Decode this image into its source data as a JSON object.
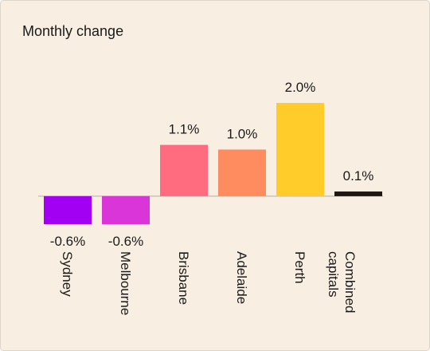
{
  "chart_data": {
    "type": "bar",
    "title": "Monthly change",
    "categories": [
      "Sydney",
      "Melbourne",
      "Brisbane",
      "Adelaide",
      "Perth",
      "Combined capitals"
    ],
    "values": [
      -0.6,
      -0.6,
      1.1,
      1.0,
      2.0,
      0.1
    ],
    "value_labels": [
      "-0.6%",
      "-0.6%",
      "1.1%",
      "1.0%",
      "2.0%",
      "0.1%"
    ],
    "colors": [
      "#a100f2",
      "#d935d9",
      "#ff6b7f",
      "#ff8c5e",
      "#ffcc29",
      "#1e1612"
    ],
    "ylim": [
      -0.6,
      2.0
    ]
  }
}
